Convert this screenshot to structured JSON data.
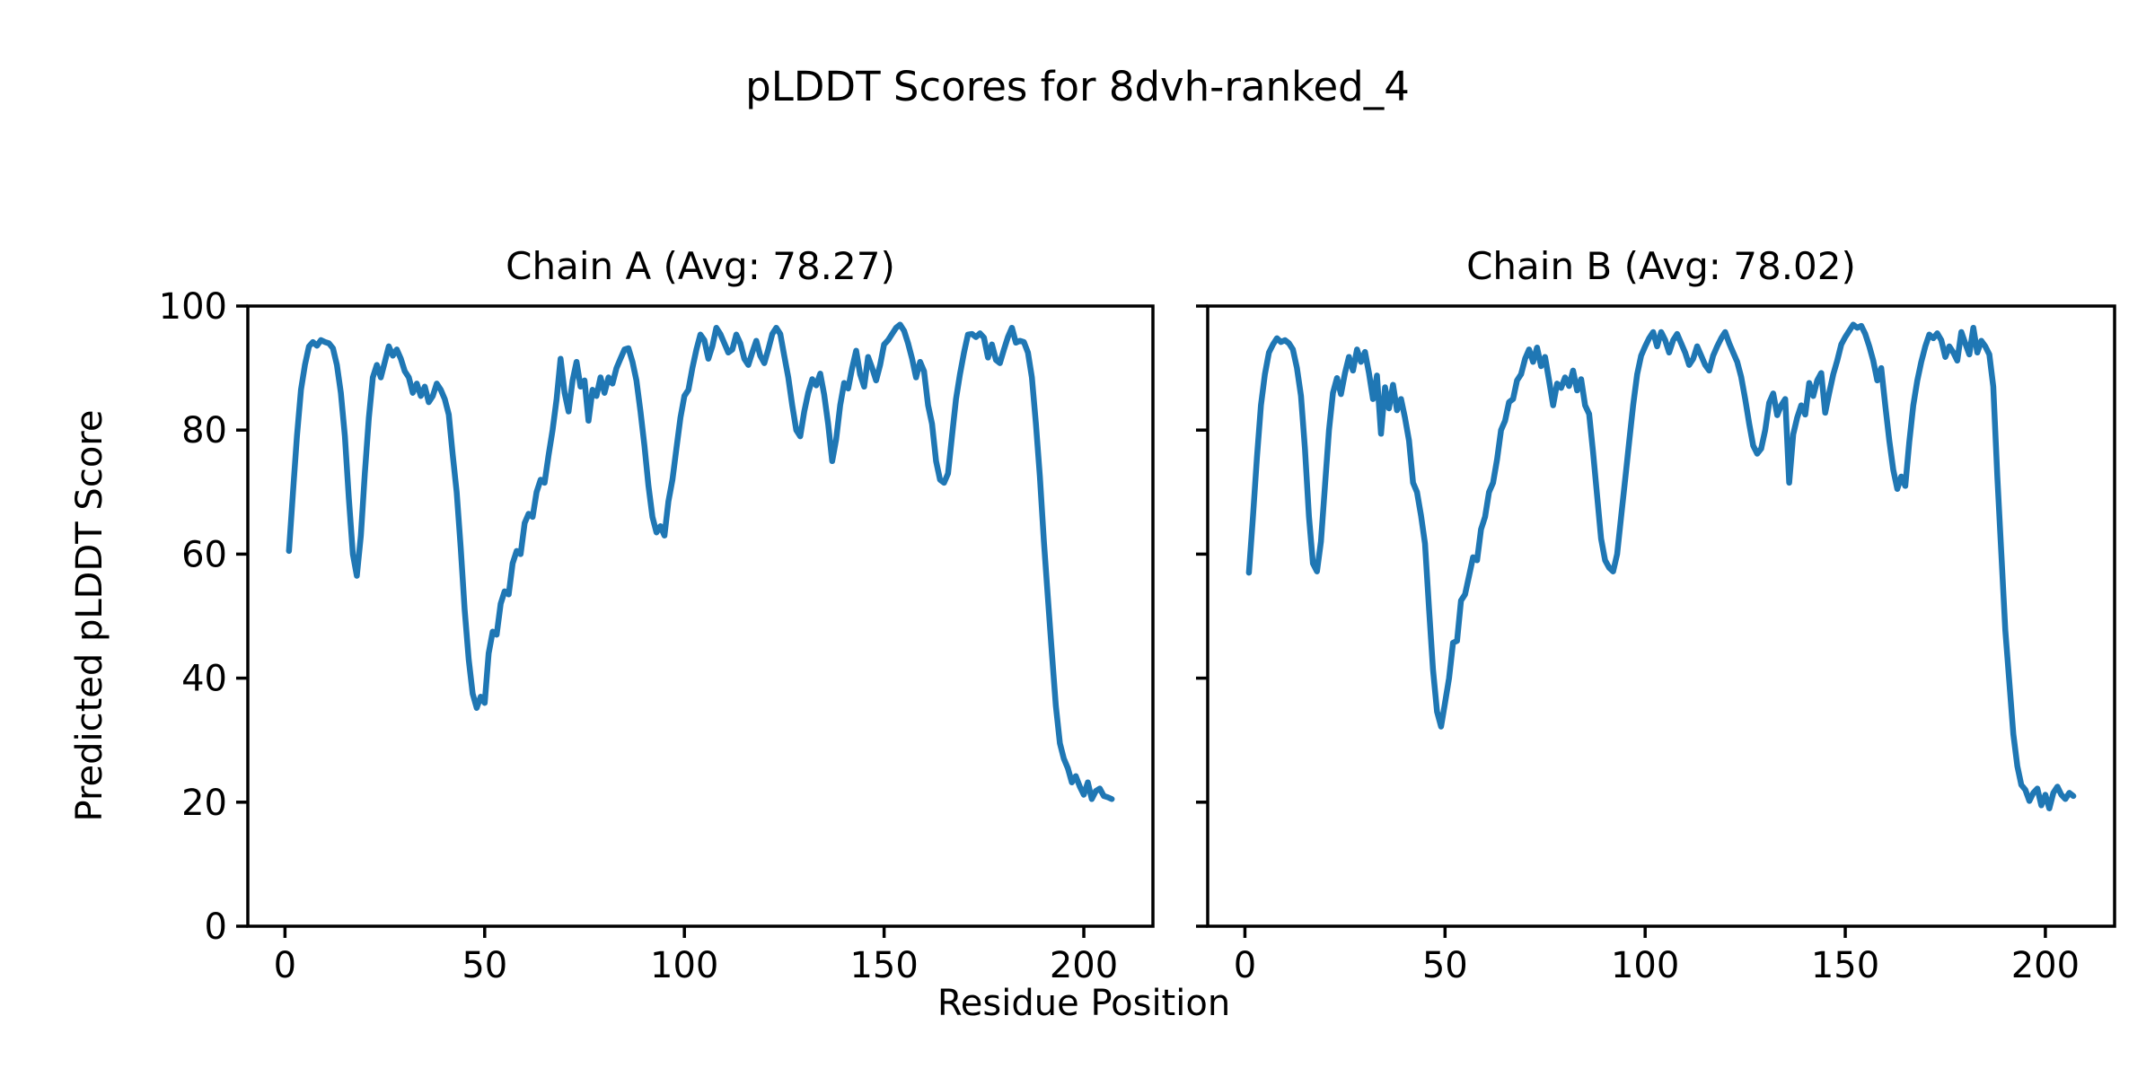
{
  "figure": {
    "title": "pLDDT Scores for 8dvh-ranked_4",
    "xlabel": "Residue Position",
    "ylabel": "Predicted pLDDT Score",
    "background_color": "#ffffff",
    "line_color": "#1f77b4",
    "axis_color": "#000000"
  },
  "chart_data": [
    {
      "type": "line",
      "title": "Chain A (Avg: 78.27)",
      "series_name": "Chain A pLDDT",
      "average": 78.27,
      "x_start": 1,
      "xlim": [
        -9.3,
        217.3
      ],
      "ylim": [
        0,
        100
      ],
      "x_ticks": [
        0,
        50,
        100,
        150,
        200
      ],
      "y_ticks": [
        0,
        20,
        40,
        60,
        80,
        100
      ],
      "show_y_tick_labels": true,
      "grid": false,
      "legend": "none",
      "values": [
        60.5,
        70,
        79,
        86.5,
        90.5,
        93.5,
        94.2,
        93.6,
        94.5,
        94.2,
        94,
        93.2,
        90.5,
        86,
        79,
        69,
        60,
        56.5,
        63,
        73,
        82,
        88.5,
        90.5,
        88.5,
        91,
        93.5,
        92,
        93,
        91.5,
        89.5,
        88.5,
        86,
        87.5,
        85.5,
        87,
        84.5,
        85.5,
        87.5,
        86.5,
        85,
        82.5,
        76,
        70,
        61,
        51,
        43,
        37.5,
        35.2,
        37,
        36,
        44,
        47.5,
        47,
        52,
        54,
        53.5,
        58.5,
        60.5,
        60,
        65,
        66.5,
        66,
        70,
        72,
        71.5,
        76,
        80,
        85,
        91.5,
        86,
        83,
        88,
        91,
        87,
        88,
        81.5,
        86.5,
        85.5,
        88.5,
        86,
        88.5,
        87.5,
        90,
        91.5,
        93,
        93.2,
        91,
        88,
        83,
        77.5,
        71,
        66,
        63.5,
        64.5,
        63,
        68.5,
        72,
        77,
        82,
        85.5,
        86.5,
        90,
        93,
        95.4,
        94.5,
        91.5,
        93.5,
        96.5,
        95.5,
        94,
        92.5,
        93,
        95.4,
        94,
        91.5,
        90.5,
        92.5,
        94.4,
        92,
        90.8,
        93,
        95.5,
        96.5,
        95.5,
        92,
        88.5,
        84,
        80,
        79,
        83,
        86,
        88.2,
        87.2,
        89.1,
        85.7,
        81,
        75,
        78.5,
        84,
        87.6,
        86.7,
        90,
        92.8,
        89,
        87,
        91.8,
        90,
        88,
        90.5,
        93.8,
        94.5,
        95.5,
        96.5,
        97,
        96,
        94,
        91.5,
        88.5,
        91,
        89.5,
        84,
        81,
        75,
        72,
        71.5,
        73,
        79,
        85,
        89,
        92.5,
        95.4,
        95.5,
        95,
        95.6,
        94.9,
        91.7,
        93.8,
        91.3,
        90.8,
        93,
        95,
        96.5,
        94.1,
        94.4,
        94.2,
        92.5,
        88.5,
        81,
        72.5,
        62,
        53,
        44,
        35.5,
        29.5,
        27,
        25.5,
        23.2,
        24.2,
        22.5,
        21.2,
        23.2,
        20.5,
        21.8,
        22.2,
        21,
        20.8,
        20.5
      ]
    },
    {
      "type": "line",
      "title": "Chain B (Avg: 78.02)",
      "series_name": "Chain B pLDDT",
      "average": 78.02,
      "x_start": 1,
      "xlim": [
        -9.3,
        217.3
      ],
      "ylim": [
        0,
        100
      ],
      "x_ticks": [
        0,
        50,
        100,
        150,
        200
      ],
      "y_ticks": [
        0,
        20,
        40,
        60,
        80,
        100
      ],
      "show_y_tick_labels": false,
      "grid": false,
      "legend": "none",
      "values": [
        57,
        66,
        75.5,
        84,
        89,
        92.5,
        93.8,
        94.8,
        94.2,
        94.5,
        94,
        93,
        90,
        85.5,
        77,
        66,
        58.5,
        57.2,
        62,
        71,
        80,
        86,
        88.4,
        85.8,
        89.2,
        91.8,
        89.6,
        93,
        91,
        92.6,
        89.2,
        85,
        88.8,
        79.4,
        86.9,
        83.5,
        87.3,
        83.2,
        85,
        82,
        78.3,
        71.5,
        70,
        66.2,
        61.7,
        51.2,
        41.4,
        34.6,
        32.2,
        36,
        40,
        45.7,
        46,
        52.5,
        53.5,
        56.5,
        59.5,
        59,
        64,
        66,
        70,
        71.5,
        75.3,
        80,
        81.5,
        84.5,
        85,
        88,
        89,
        91.5,
        93,
        91,
        93.3,
        90.3,
        91.8,
        88,
        84,
        87.5,
        86.8,
        88.5,
        87.1,
        89.6,
        86.4,
        88.2,
        84,
        82.6,
        76.4,
        69.4,
        62.5,
        59,
        57.8,
        57.2,
        60,
        66,
        72,
        78,
        84,
        89,
        92,
        93.5,
        94.8,
        95.8,
        93.5,
        95.8,
        94.5,
        92.5,
        94.5,
        95.5,
        94,
        92.5,
        90.5,
        91.5,
        93.5,
        92,
        90.5,
        89.6,
        92,
        93.5,
        94.8,
        95.8,
        94,
        92.5,
        91,
        88.6,
        85,
        81,
        77.5,
        76.2,
        77,
        80,
        84.4,
        85.9,
        82.4,
        84,
        85,
        71.5,
        79.3,
        82,
        84,
        82.5,
        87.6,
        85.5,
        88,
        89.2,
        82.8,
        86,
        89,
        91.2,
        93.8,
        95,
        96,
        97,
        96.5,
        96.8,
        95.5,
        93.5,
        91.2,
        88,
        90,
        84,
        78.3,
        73.6,
        70.5,
        72.5,
        71,
        78,
        84,
        88,
        91,
        93.5,
        95.4,
        94.8,
        95.6,
        94.5,
        91.8,
        93.5,
        92.5,
        91.2,
        95.8,
        94,
        92.2,
        96.5,
        92.5,
        94.4,
        93.5,
        92.2,
        87,
        72.5,
        60,
        47.7,
        39.3,
        31,
        25.8,
        22.8,
        22,
        20.2,
        21.5,
        22.2,
        19.5,
        21.2,
        19,
        21.5,
        22.5,
        21.2,
        20.5,
        21.5,
        21
      ]
    }
  ]
}
